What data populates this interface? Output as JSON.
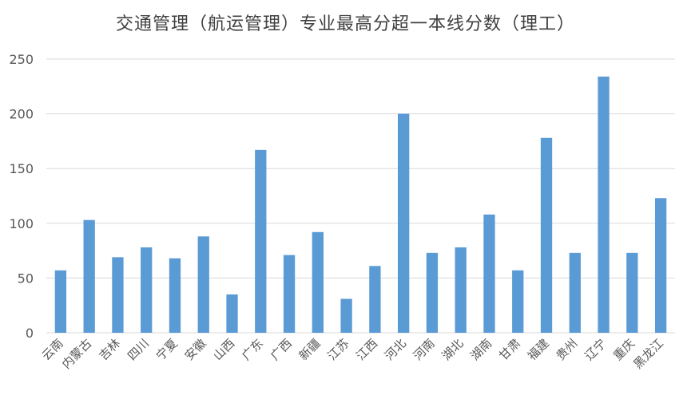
{
  "chart_data": {
    "type": "bar",
    "title": "交通管理（航运管理）专业最高分超一本线分数（理工）",
    "xlabel": "",
    "ylabel": "",
    "ylim": [
      0,
      250
    ],
    "yticks": [
      0,
      50,
      100,
      150,
      200,
      250
    ],
    "grid": true,
    "legend": "none",
    "bar_color": "#5B9BD5",
    "grid_color": "#D9D9D9",
    "categories": [
      "云南",
      "内蒙古",
      "吉林",
      "四川",
      "宁夏",
      "安徽",
      "山西",
      "广东",
      "广西",
      "新疆",
      "江苏",
      "江西",
      "河北",
      "河南",
      "湖北",
      "湖南",
      "甘肃",
      "福建",
      "贵州",
      "辽宁",
      "重庆",
      "黑龙江"
    ],
    "values": [
      57,
      103,
      69,
      78,
      68,
      88,
      35,
      167,
      71,
      92,
      31,
      61,
      200,
      73,
      78,
      108,
      57,
      178,
      73,
      234,
      73,
      123
    ]
  }
}
